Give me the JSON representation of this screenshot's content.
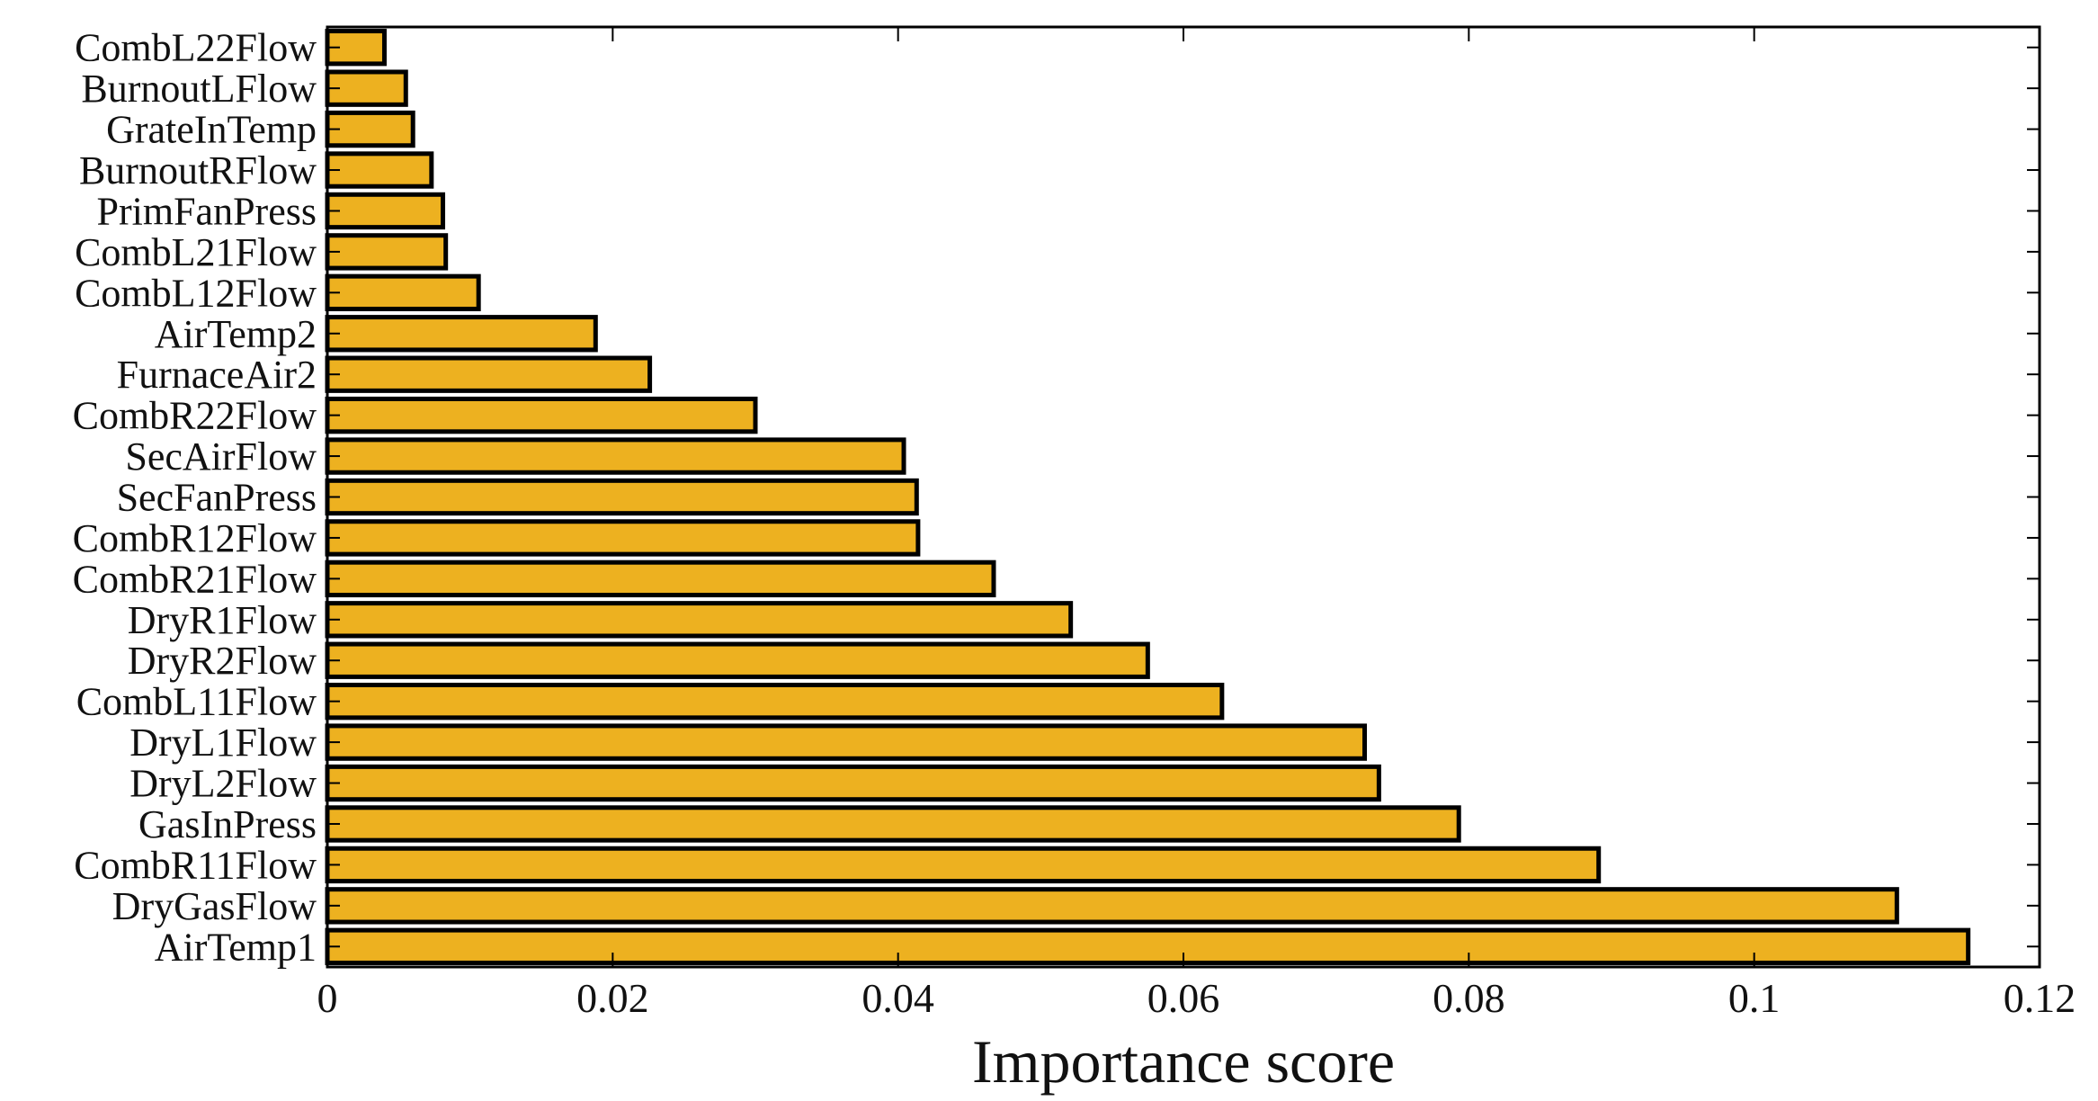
{
  "chart_data": {
    "type": "bar",
    "orientation": "horizontal",
    "categories": [
      "CombL22Flow",
      "BurnoutLFlow",
      "GrateInTemp",
      "BurnoutRFlow",
      "PrimFanPress",
      "CombL21Flow",
      "CombL12Flow",
      "AirTemp2",
      "FurnaceAir2",
      "CombR22Flow",
      "SecAirFlow",
      "SecFanPress",
      "CombR12Flow",
      "CombR21Flow",
      "DryR1Flow",
      "DryR2Flow",
      "CombL11Flow",
      "DryL1Flow",
      "DryL2Flow",
      "GasInPress",
      "CombR11Flow",
      "DryGasFlow",
      "AirTemp1"
    ],
    "values": [
      0.004,
      0.0055,
      0.006,
      0.0073,
      0.0081,
      0.0083,
      0.0106,
      0.0188,
      0.0226,
      0.03,
      0.0404,
      0.0413,
      0.0414,
      0.0467,
      0.0521,
      0.0575,
      0.0627,
      0.0727,
      0.0737,
      0.0793,
      0.0891,
      0.11,
      0.115
    ],
    "title": "",
    "xlabel": "Importance score",
    "ylabel": "",
    "xlim": [
      0,
      0.12
    ],
    "xticks": [
      "0",
      "0.02",
      "0.04",
      "0.06",
      "0.08",
      "0.1",
      "0.12"
    ],
    "xtick_values": [
      0,
      0.02,
      0.04,
      0.06,
      0.08,
      0.1,
      0.12
    ],
    "bar_color": "#edb120",
    "edge_color": "#000000",
    "grid": false,
    "legend": "none"
  }
}
